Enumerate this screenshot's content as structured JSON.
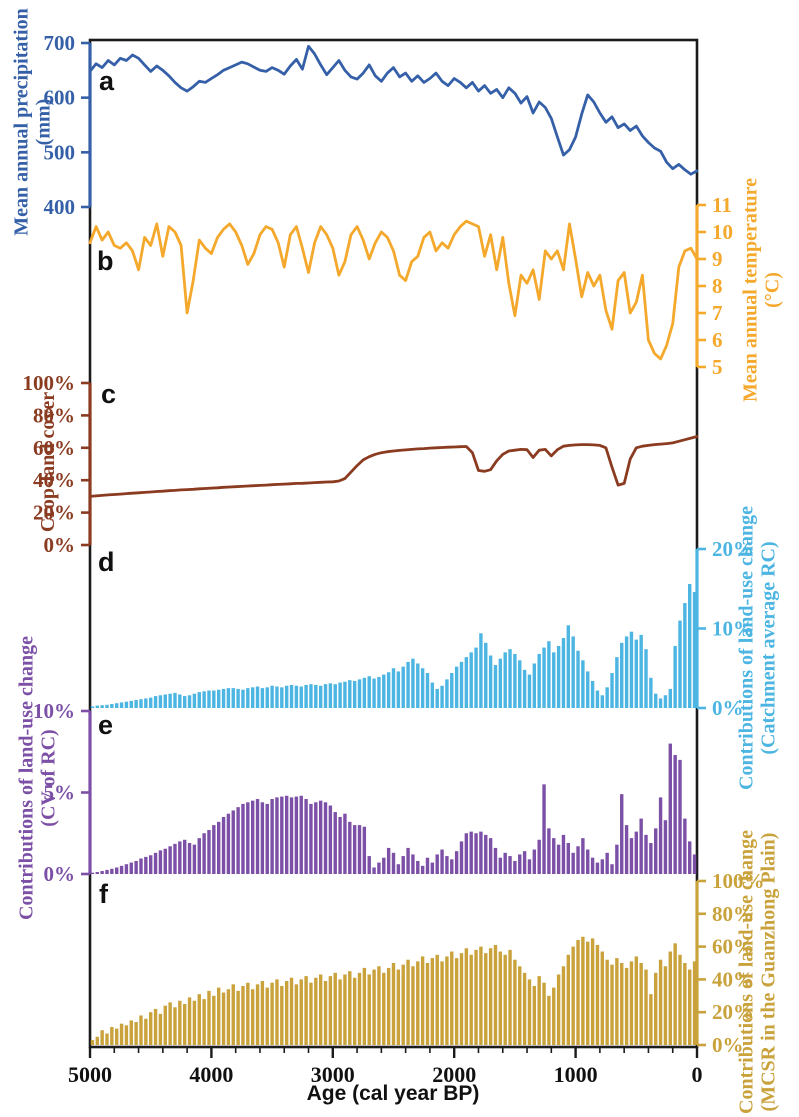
{
  "figure": {
    "frame_color": "#1b1b1b",
    "background": "#ffffff"
  },
  "x_axis": {
    "label": "Age (cal year BP)",
    "ticks": [
      5000,
      4000,
      3000,
      2000,
      1000,
      0
    ],
    "tick_labels": [
      "5000",
      "4000",
      "3000",
      "2000",
      "1000",
      "0"
    ],
    "minor_step": 200,
    "range": [
      5000,
      0
    ],
    "color": "#111111"
  },
  "chart_data": [
    {
      "id": "a",
      "panel_label": "a",
      "type": "line",
      "side": "left",
      "axis_title": "Mean annual precipitation",
      "axis_unit": "(mm)",
      "color": "#3560a8",
      "ylim": [
        400,
        700
      ],
      "yticks": [
        400,
        500,
        600,
        700
      ],
      "ytick_labels": [
        "400",
        "500",
        "600",
        "700"
      ],
      "x_start": 5000,
      "x_step": -50,
      "values": [
        648,
        662,
        655,
        668,
        660,
        672,
        668,
        678,
        672,
        660,
        648,
        658,
        650,
        640,
        628,
        618,
        612,
        620,
        630,
        628,
        635,
        642,
        650,
        655,
        660,
        665,
        662,
        656,
        650,
        648,
        655,
        650,
        643,
        658,
        670,
        652,
        694,
        680,
        660,
        642,
        655,
        668,
        650,
        638,
        634,
        645,
        660,
        640,
        630,
        645,
        655,
        638,
        645,
        630,
        640,
        628,
        635,
        645,
        630,
        622,
        635,
        628,
        618,
        628,
        612,
        622,
        608,
        615,
        600,
        618,
        608,
        590,
        602,
        572,
        592,
        582,
        562,
        528,
        495,
        505,
        528,
        570,
        605,
        592,
        572,
        555,
        565,
        545,
        552,
        540,
        548,
        530,
        518,
        508,
        502,
        482,
        470,
        478,
        468,
        460,
        466
      ]
    },
    {
      "id": "b",
      "panel_label": "b",
      "type": "line",
      "side": "right",
      "axis_title": "Mean annual temperature",
      "axis_unit": "(°C)",
      "color": "#f4a82c",
      "ylim": [
        5,
        11
      ],
      "yticks": [
        5,
        6,
        7,
        8,
        9,
        10,
        11
      ],
      "ytick_labels": [
        "5",
        "6",
        "7",
        "8",
        "9",
        "10",
        "11"
      ],
      "x_start": 5000,
      "x_step": -50,
      "values": [
        9.6,
        10.2,
        9.7,
        10.0,
        9.5,
        9.4,
        9.6,
        9.3,
        8.6,
        9.8,
        9.5,
        10.3,
        9.1,
        10.2,
        10.0,
        9.5,
        7.0,
        8.2,
        9.7,
        9.4,
        9.2,
        9.8,
        10.1,
        10.3,
        10.0,
        9.5,
        8.8,
        9.2,
        9.9,
        10.2,
        10.1,
        9.6,
        8.7,
        9.9,
        10.2,
        9.4,
        8.5,
        9.6,
        10.2,
        9.9,
        9.4,
        8.4,
        8.9,
        9.9,
        10.2,
        9.7,
        9.0,
        9.6,
        10.0,
        9.8,
        9.3,
        8.4,
        8.2,
        8.9,
        9.1,
        9.8,
        10.0,
        9.3,
        9.6,
        9.4,
        9.9,
        10.2,
        10.4,
        10.3,
        10.2,
        9.1,
        9.9,
        8.6,
        9.8,
        8.1,
        6.9,
        8.4,
        8.1,
        8.6,
        7.5,
        9.3,
        9.0,
        9.3,
        8.6,
        10.3,
        9.0,
        7.6,
        8.5,
        8.0,
        8.4,
        7.1,
        6.4,
        8.2,
        8.5,
        7.0,
        7.4,
        8.4,
        6.0,
        5.5,
        5.3,
        5.8,
        6.6,
        8.7,
        9.3,
        9.4,
        9.0
      ]
    },
    {
      "id": "c",
      "panel_label": "c",
      "type": "line",
      "side": "left",
      "axis_title": "Crop-land cover",
      "axis_unit": "",
      "color": "#8a3b20",
      "ylim": [
        0,
        100
      ],
      "yticks": [
        0,
        20,
        40,
        60,
        80,
        100
      ],
      "ytick_labels": [
        "0%",
        "20%",
        "40%",
        "60%",
        "80%",
        "100%"
      ],
      "x_start": 5000,
      "x_step": -50,
      "values": [
        30,
        30.3,
        30.6,
        30.9,
        31.2,
        31.4,
        31.7,
        32,
        32.2,
        32.5,
        32.7,
        33,
        33.2,
        33.5,
        33.7,
        34,
        34.2,
        34.4,
        34.7,
        34.9,
        35.1,
        35.3,
        35.6,
        35.8,
        36,
        36.2,
        36.4,
        36.6,
        36.8,
        37,
        37.2,
        37.4,
        37.6,
        37.8,
        38,
        38.1,
        38.3,
        38.5,
        38.7,
        38.9,
        39,
        39.5,
        41,
        45,
        49,
        52.5,
        54.5,
        56,
        57,
        57.6,
        58,
        58.4,
        58.7,
        59,
        59.3,
        59.5,
        59.8,
        60,
        60.2,
        60.4,
        60.5,
        60.7,
        60.8,
        57,
        46,
        45.5,
        46.5,
        52,
        56,
        58,
        58.5,
        59,
        58.8,
        54,
        58.5,
        59,
        55,
        58.8,
        61,
        61.5,
        61.8,
        62,
        62,
        61.8,
        61.5,
        60,
        48,
        37,
        38,
        53,
        60,
        61,
        61.5,
        62,
        62.3,
        62.6,
        63,
        64,
        65,
        66,
        67
      ]
    },
    {
      "id": "d",
      "panel_label": "d",
      "type": "bar",
      "side": "right",
      "axis_title": "Contributions of land-use change",
      "axis_unit": "(Catchment average RC)",
      "color": "#4cb5e2",
      "ylim": [
        0,
        20
      ],
      "yticks": [
        0,
        10,
        20
      ],
      "ytick_labels": [
        "0%",
        "10%",
        "20%"
      ],
      "x_start": 4980,
      "x_step": -40,
      "values": [
        0.2,
        0.3,
        0.35,
        0.4,
        0.5,
        0.6,
        0.7,
        0.8,
        0.9,
        1.0,
        1.1,
        1.2,
        1.3,
        1.5,
        1.6,
        1.7,
        1.8,
        1.9,
        1.7,
        1.5,
        1.6,
        1.8,
        2.0,
        2.1,
        2.2,
        2.2,
        2.3,
        2.4,
        2.5,
        2.5,
        2.4,
        2.3,
        2.5,
        2.6,
        2.7,
        2.5,
        2.6,
        2.8,
        2.7,
        2.6,
        2.8,
        2.9,
        2.8,
        2.7,
        2.9,
        3.0,
        2.9,
        2.8,
        3.0,
        3.1,
        3.0,
        3.2,
        3.3,
        3.5,
        3.4,
        3.6,
        3.8,
        4.0,
        3.7,
        3.9,
        4.2,
        4.5,
        5.0,
        4.6,
        5.2,
        5.8,
        6.2,
        5.6,
        5.0,
        4.4,
        3.2,
        2.4,
        2.8,
        3.6,
        4.4,
        5.2,
        5.8,
        6.4,
        7.0,
        7.6,
        9.4,
        8.2,
        6.6,
        5.4,
        6.2,
        7.0,
        7.4,
        6.8,
        6.0,
        4.8,
        4.2,
        5.6,
        6.8,
        7.6,
        8.4,
        7.0,
        7.8,
        8.8,
        10.4,
        9.0,
        7.2,
        6.0,
        4.6,
        3.4,
        2.2,
        1.6,
        2.6,
        4.4,
        6.4,
        8.2,
        9.0,
        9.6,
        8.6,
        9.2,
        7.4,
        3.8,
        1.8,
        1.2,
        1.6,
        2.4,
        7.8,
        11.0,
        13.2,
        15.6,
        14.6
      ]
    },
    {
      "id": "e",
      "panel_label": "e",
      "type": "bar",
      "side": "left",
      "axis_title": "Contributions of land-use change",
      "axis_unit": "(CV of RC)",
      "color": "#7c50a6",
      "ylim": [
        0,
        10
      ],
      "yticks": [
        0,
        5,
        10
      ],
      "ytick_labels": [
        "0%",
        "5%",
        "10%"
      ],
      "x_start": 4980,
      "x_step": -40,
      "values": [
        0.08,
        0.12,
        0.18,
        0.25,
        0.32,
        0.4,
        0.5,
        0.6,
        0.7,
        0.8,
        0.95,
        1.05,
        1.15,
        1.3,
        1.45,
        1.55,
        1.7,
        1.85,
        2.0,
        2.1,
        1.9,
        1.8,
        2.2,
        2.5,
        2.7,
        3.0,
        3.2,
        3.5,
        3.7,
        3.9,
        4.1,
        4.3,
        4.4,
        4.5,
        4.6,
        4.4,
        4.3,
        4.6,
        4.7,
        4.75,
        4.8,
        4.7,
        4.75,
        4.8,
        4.6,
        4.3,
        4.4,
        4.5,
        4.4,
        4.2,
        3.8,
        3.5,
        3.7,
        3.2,
        3.0,
        3.0,
        2.9,
        1.1,
        0.4,
        0.7,
        1.0,
        1.6,
        1.3,
        0.6,
        1.1,
        1.6,
        1.2,
        0.8,
        0.5,
        1.0,
        0.7,
        1.2,
        1.5,
        1.1,
        0.9,
        1.4,
        2.0,
        2.5,
        2.6,
        2.5,
        2.6,
        2.4,
        2.2,
        1.6,
        1.0,
        1.3,
        1.1,
        0.8,
        1.2,
        1.4,
        0.9,
        1.5,
        2.1,
        5.5,
        2.8,
        2.2,
        1.8,
        2.4,
        1.9,
        1.3,
        1.7,
        2.2,
        1.5,
        1.0,
        0.7,
        0.9,
        1.3,
        0.6,
        1.8,
        4.9,
        3.0,
        2.2,
        2.6,
        3.4,
        2.4,
        1.9,
        2.8,
        4.7,
        3.3,
        8.0,
        7.3,
        7.0,
        3.4,
        2.0,
        1.2
      ]
    },
    {
      "id": "f",
      "panel_label": "f",
      "type": "bar",
      "side": "right",
      "axis_title": "Contributions of land-use change",
      "axis_unit": "(MCSR in the Guanzhong Plain)",
      "color": "#c9a23c",
      "ylim": [
        0,
        100
      ],
      "yticks": [
        0,
        20,
        40,
        60,
        80,
        100
      ],
      "ytick_labels": [
        "0%",
        "20%",
        "40%",
        "60%",
        "80%",
        "100%"
      ],
      "x_start": 4980,
      "x_step": -40,
      "values": [
        3,
        5,
        9,
        7,
        11,
        10,
        13,
        12,
        15,
        14,
        18,
        16,
        20,
        22,
        19,
        24,
        26,
        23,
        27,
        25,
        29,
        27,
        31,
        28,
        33,
        30,
        35,
        32,
        34,
        37,
        33,
        36,
        38,
        34,
        37,
        39,
        35,
        38,
        40,
        36,
        39,
        41,
        37,
        40,
        42,
        38,
        41,
        43,
        39,
        42,
        44,
        40,
        43,
        45,
        41,
        44,
        47,
        43,
        46,
        48,
        44,
        47,
        50,
        46,
        49,
        52,
        48,
        51,
        54,
        50,
        53,
        55,
        51,
        54,
        57,
        53,
        56,
        59,
        55,
        58,
        60,
        56,
        59,
        61,
        57,
        55,
        58,
        52,
        48,
        44,
        40,
        36,
        42,
        38,
        30,
        35,
        43,
        48,
        55,
        60,
        64,
        66,
        63,
        65,
        61,
        57,
        52,
        49,
        53,
        50,
        47,
        51,
        54,
        50,
        46,
        31,
        44,
        52,
        48,
        57,
        62,
        55,
        50,
        46,
        51
      ]
    }
  ]
}
